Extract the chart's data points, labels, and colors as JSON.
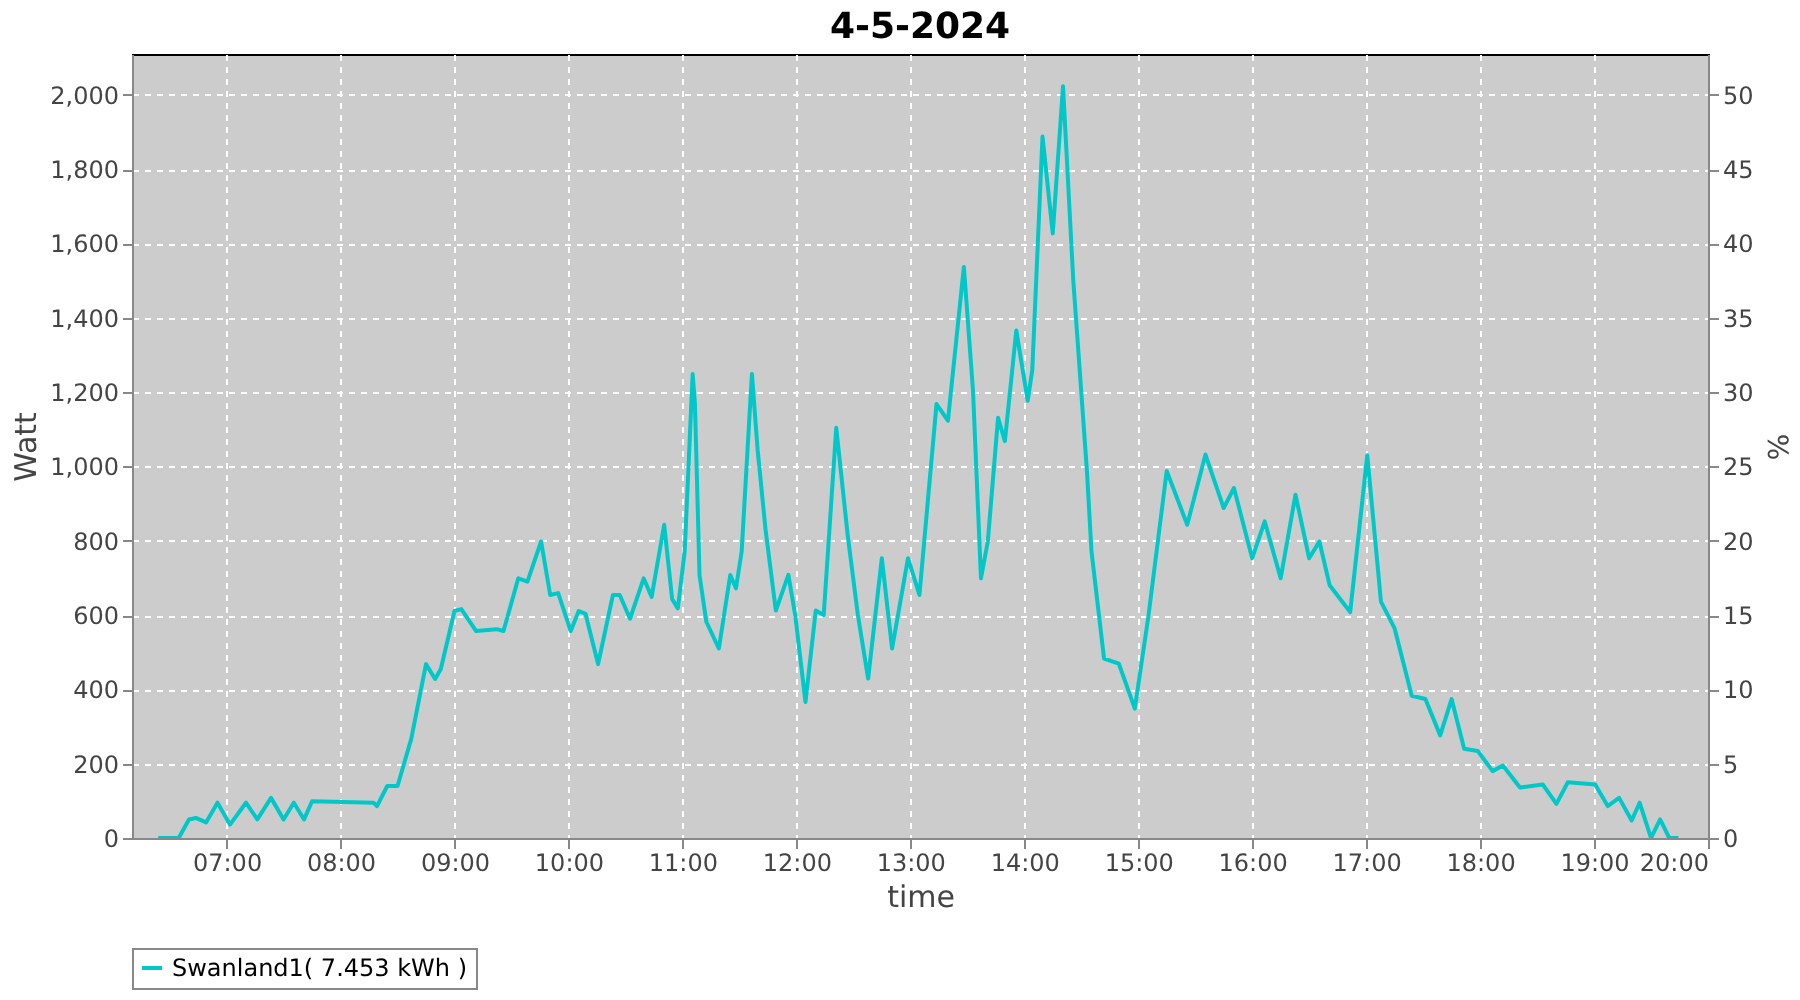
{
  "chart_data": {
    "type": "line",
    "title": "4-5-2024",
    "xlabel": "time",
    "ylabel": "Watt",
    "y2label": "%",
    "xlim": [
      6.17,
      20
    ],
    "ylim": [
      0,
      2110
    ],
    "y2lim": [
      0,
      52.75
    ],
    "xticks": [
      {
        "value": 7,
        "label": "07:00"
      },
      {
        "value": 8,
        "label": "08:00"
      },
      {
        "value": 9,
        "label": "09:00"
      },
      {
        "value": 10,
        "label": "10:00"
      },
      {
        "value": 11,
        "label": "11:00"
      },
      {
        "value": 12,
        "label": "12:00"
      },
      {
        "value": 13,
        "label": "13:00"
      },
      {
        "value": 14,
        "label": "14:00"
      },
      {
        "value": 15,
        "label": "15:00"
      },
      {
        "value": 16,
        "label": "16:00"
      },
      {
        "value": 17,
        "label": "17:00"
      },
      {
        "value": 18,
        "label": "18:00"
      },
      {
        "value": 19,
        "label": "19:00"
      },
      {
        "value": 20,
        "label": "20:00"
      }
    ],
    "yticks": [
      0,
      200,
      400,
      600,
      800,
      {
        "value": 1000,
        "label": "1,000"
      },
      {
        "value": 1200,
        "label": "1,200"
      },
      {
        "value": 1400,
        "label": "1,400"
      },
      {
        "value": 1600,
        "label": "1,600"
      },
      {
        "value": 1800,
        "label": "1,800"
      },
      {
        "value": 2000,
        "label": "2,000"
      }
    ],
    "y2ticks": [
      0,
      5,
      10,
      15,
      20,
      25,
      30,
      35,
      40,
      45,
      50
    ],
    "grid": true,
    "legend": "bottom",
    "marker": "none",
    "line_style": "solid",
    "series": [
      {
        "name": "Swanland1( 7.453 kWh )",
        "color": "#00c8c8",
        "x": [
          6.4,
          6.58,
          6.67,
          6.73,
          6.82,
          6.92,
          7.03,
          7.17,
          7.27,
          7.39,
          7.5,
          7.59,
          7.68,
          7.75,
          8.29,
          8.32,
          8.41,
          8.5,
          8.62,
          8.75,
          8.83,
          8.88,
          9.0,
          9.06,
          9.19,
          9.37,
          9.43,
          9.56,
          9.64,
          9.76,
          9.84,
          9.91,
          10.02,
          10.09,
          10.15,
          10.26,
          10.39,
          10.45,
          10.54,
          10.66,
          10.73,
          10.84,
          10.91,
          10.96,
          11.02,
          11.09,
          11.11,
          11.15,
          11.21,
          11.32,
          11.42,
          11.47,
          11.52,
          11.61,
          11.66,
          11.73,
          11.82,
          11.93,
          11.99,
          12.08,
          12.17,
          12.24,
          12.35,
          12.45,
          12.54,
          12.63,
          12.75,
          12.84,
          12.98,
          13.08,
          13.23,
          13.33,
          13.47,
          13.55,
          13.62,
          13.68,
          13.77,
          13.83,
          13.93,
          14.03,
          14.07,
          14.16,
          14.25,
          14.34,
          14.43,
          14.55,
          14.59,
          14.7,
          14.83,
          14.97,
          15.09,
          15.25,
          15.43,
          15.59,
          15.75,
          15.84,
          16.0,
          16.11,
          16.25,
          16.38,
          16.5,
          16.59,
          16.68,
          16.86,
          17.01,
          17.13,
          17.25,
          17.4,
          17.52,
          17.65,
          17.75,
          17.86,
          17.98,
          18.11,
          18.2,
          18.35,
          18.55,
          18.67,
          18.77,
          19.01,
          19.12,
          19.22,
          19.33,
          19.4,
          19.5,
          19.58,
          19.66,
          19.74
        ],
        "values": [
          0,
          0,
          50,
          54,
          42,
          95,
          36,
          95,
          50,
          108,
          50,
          95,
          50,
          99,
          95,
          86,
          140,
          140,
          266,
          468,
          428,
          455,
          611,
          616,
          557,
          562,
          557,
          699,
          690,
          798,
          654,
          659,
          557,
          611,
          603,
          468,
          654,
          654,
          590,
          699,
          649,
          843,
          643,
          618,
          771,
          1249,
          1168,
          708,
          582,
          510,
          708,
          672,
          771,
          1249,
          1045,
          829,
          612,
          708,
          600,
          366,
          612,
          600,
          1104,
          816,
          600,
          429,
          753,
          510,
          753,
          654,
          1168,
          1123,
          1537,
          1204,
          699,
          798,
          1131,
          1068,
          1366,
          1177,
          1258,
          1888,
          1627,
          2023,
          1501,
          987,
          771,
          483,
          469,
          348,
          598,
          988,
          843,
          1032,
          888,
          942,
          753,
          852,
          699,
          924,
          753,
          798,
          680,
          608,
          1030,
          636,
          564,
          383,
          374,
          276,
          374,
          240,
          234,
          180,
          195,
          136,
          144,
          92,
          150,
          144,
          86,
          108,
          47,
          95,
          0,
          50,
          0,
          0
        ]
      }
    ]
  }
}
